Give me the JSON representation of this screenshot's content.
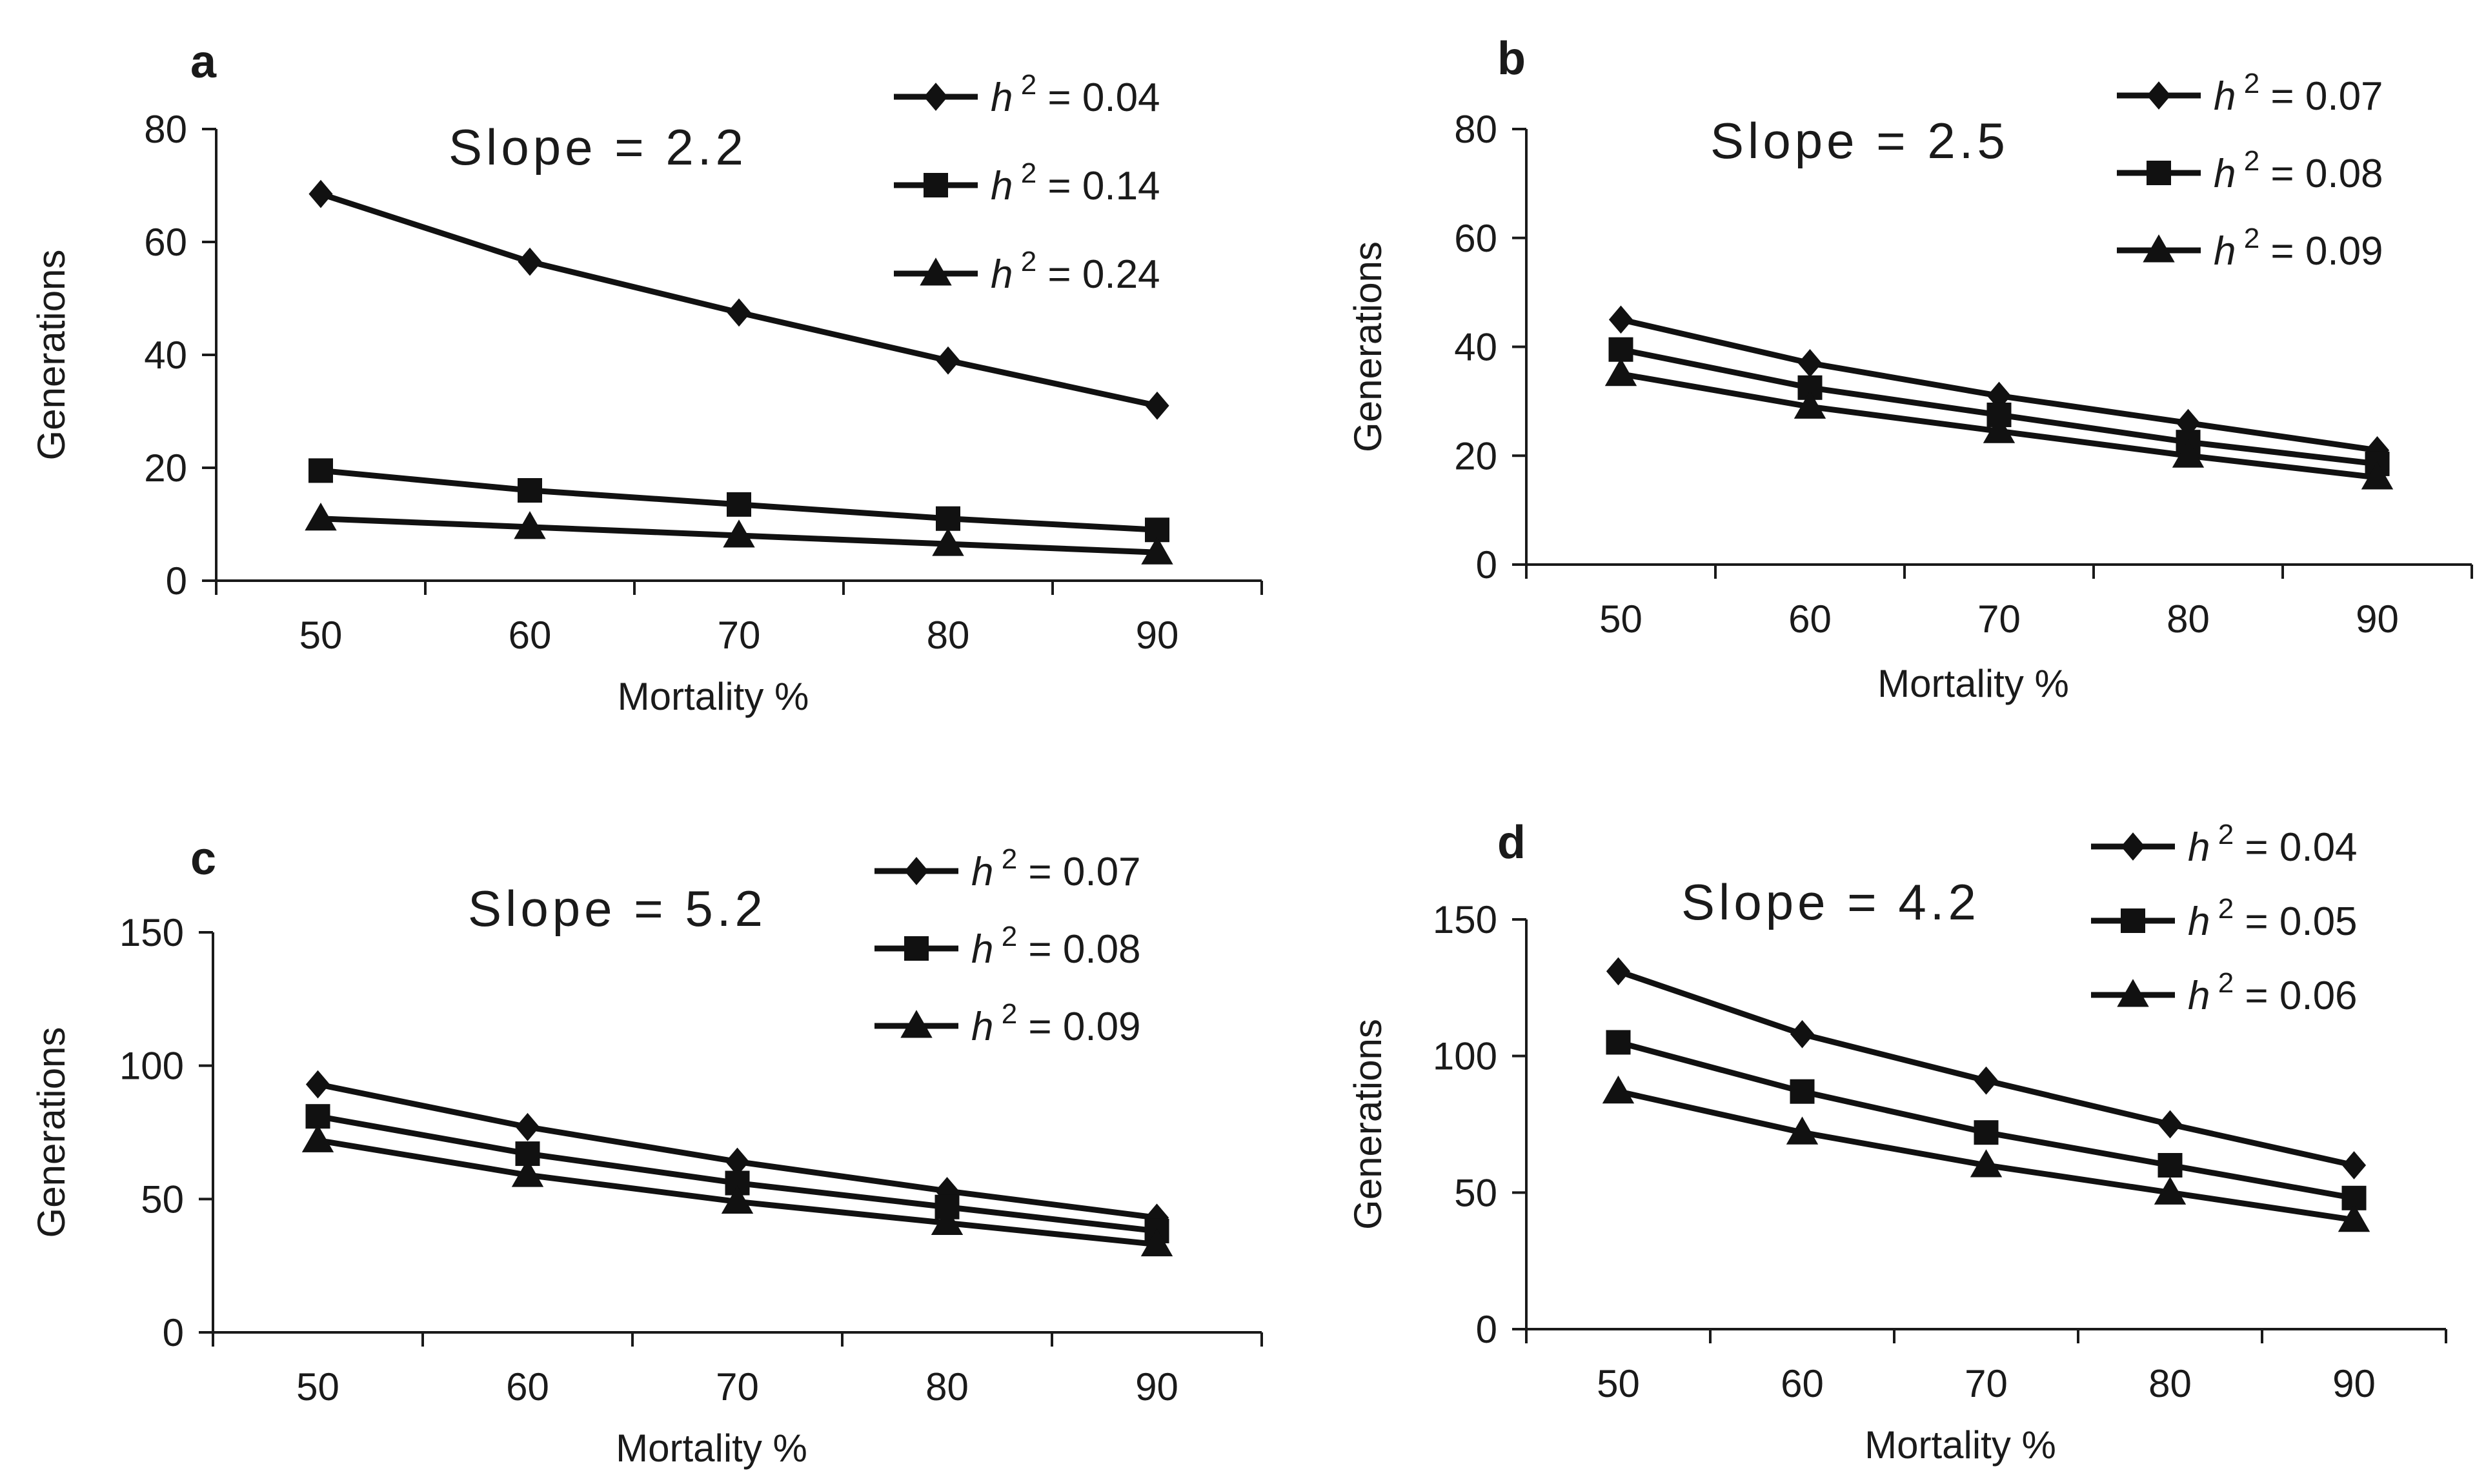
{
  "chart_data": [
    {
      "panel": "a",
      "type": "line",
      "annotation": "Slope = 2.2",
      "xlabel": "Mortality %",
      "ylabel": "Generations",
      "x": [
        50,
        60,
        70,
        80,
        90
      ],
      "xticks": [
        "50",
        "60",
        "70",
        "80",
        "90"
      ],
      "ylim": [
        0,
        80
      ],
      "yticks": [
        "0",
        "20",
        "40",
        "60",
        "80"
      ],
      "series": [
        {
          "name": "0.04",
          "marker": "diamond",
          "values": [
            68.5,
            56.5,
            47.5,
            39,
            31
          ]
        },
        {
          "name": "0.14",
          "marker": "square",
          "values": [
            19.5,
            16,
            13.5,
            11,
            9
          ]
        },
        {
          "name": "0.24",
          "marker": "triangle",
          "values": [
            11,
            9.5,
            8,
            6.5,
            5
          ]
        }
      ]
    },
    {
      "panel": "b",
      "type": "line",
      "annotation": "Slope = 2.5",
      "xlabel": "Mortality %",
      "ylabel": "Generations",
      "x": [
        50,
        60,
        70,
        80,
        90
      ],
      "xticks": [
        "50",
        "60",
        "70",
        "80",
        "90"
      ],
      "ylim": [
        0,
        80
      ],
      "yticks": [
        "0",
        "20",
        "40",
        "60",
        "80"
      ],
      "series": [
        {
          "name": "0.07",
          "marker": "diamond",
          "values": [
            45,
            37,
            31,
            26,
            21
          ]
        },
        {
          "name": "0.08",
          "marker": "square",
          "values": [
            39.5,
            32.5,
            27.5,
            22.5,
            18.5
          ]
        },
        {
          "name": "0.09",
          "marker": "triangle",
          "values": [
            35,
            29,
            24.5,
            20,
            16
          ]
        }
      ]
    },
    {
      "panel": "c",
      "type": "line",
      "annotation": "Slope = 5.2",
      "xlabel": "Mortality %",
      "ylabel": "Generations",
      "x": [
        50,
        60,
        70,
        80,
        90
      ],
      "xticks": [
        "50",
        "60",
        "70",
        "80",
        "90"
      ],
      "ylim": [
        0,
        150
      ],
      "yticks": [
        "0",
        "50",
        "100",
        "150"
      ],
      "series": [
        {
          "name": "0.07",
          "marker": "diamond",
          "values": [
            93,
            77,
            64,
            53,
            43
          ]
        },
        {
          "name": "0.08",
          "marker": "square",
          "values": [
            81,
            67,
            56,
            47,
            38
          ]
        },
        {
          "name": "0.09",
          "marker": "triangle",
          "values": [
            72,
            59,
            49,
            41,
            33
          ]
        }
      ]
    },
    {
      "panel": "d",
      "type": "line",
      "annotation": "Slope = 4.2",
      "xlabel": "Mortality %",
      "ylabel": "Generations",
      "x": [
        50,
        60,
        70,
        80,
        90
      ],
      "xticks": [
        "50",
        "60",
        "70",
        "80",
        "90"
      ],
      "ylim": [
        0,
        150
      ],
      "yticks": [
        "0",
        "50",
        "100",
        "150"
      ],
      "series": [
        {
          "name": "0.04",
          "marker": "diamond",
          "values": [
            131,
            108,
            91,
            75,
            60
          ]
        },
        {
          "name": "0.05",
          "marker": "square",
          "values": [
            105,
            87,
            72,
            60,
            48
          ]
        },
        {
          "name": "0.06",
          "marker": "triangle",
          "values": [
            87,
            72,
            60,
            50,
            40
          ]
        }
      ]
    }
  ],
  "legend_prefix": "h",
  "legend_sup": "2",
  "legend_eq": "=",
  "colors": {
    "ink": "#111111",
    "background": "#ffffff"
  }
}
